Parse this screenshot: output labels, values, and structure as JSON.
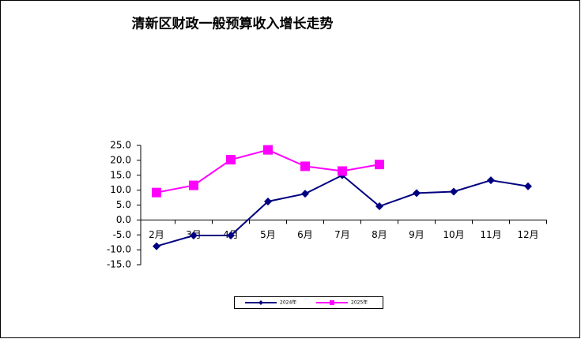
{
  "chart_data": {
    "type": "line",
    "title": "清新区财政一般预算收入增长走势",
    "categories": [
      "2月",
      "3月",
      "4月",
      "5月",
      "6月",
      "7月",
      "8月",
      "9月",
      "10月",
      "11月",
      "12月"
    ],
    "series": [
      {
        "name": "2024年",
        "color": "#000080",
        "marker": "diamond",
        "values": [
          -8.8,
          -5.2,
          -5.2,
          6.2,
          8.8,
          15.0,
          4.6,
          9.0,
          9.5,
          13.3,
          11.3
        ]
      },
      {
        "name": "2025年",
        "color": "#ff00ff",
        "marker": "square",
        "values": [
          9.2,
          11.6,
          20.2,
          23.5,
          18.0,
          16.4,
          18.6,
          null,
          null,
          null,
          null
        ]
      }
    ],
    "ylim": [
      -15,
      25
    ],
    "yticks": [
      {
        "value": -15,
        "label": "-15.0"
      },
      {
        "value": -10,
        "label": "-10.0"
      },
      {
        "value": -5,
        "label": "-5.0"
      },
      {
        "value": 0,
        "label": "0.0"
      },
      {
        "value": 5,
        "label": "5.0"
      },
      {
        "value": 10,
        "label": "10.0"
      },
      {
        "value": 15,
        "label": "15.0"
      },
      {
        "value": 20,
        "label": "20.0"
      },
      {
        "value": 25,
        "label": "25.0"
      }
    ],
    "grid": false,
    "legend": "bottom"
  }
}
